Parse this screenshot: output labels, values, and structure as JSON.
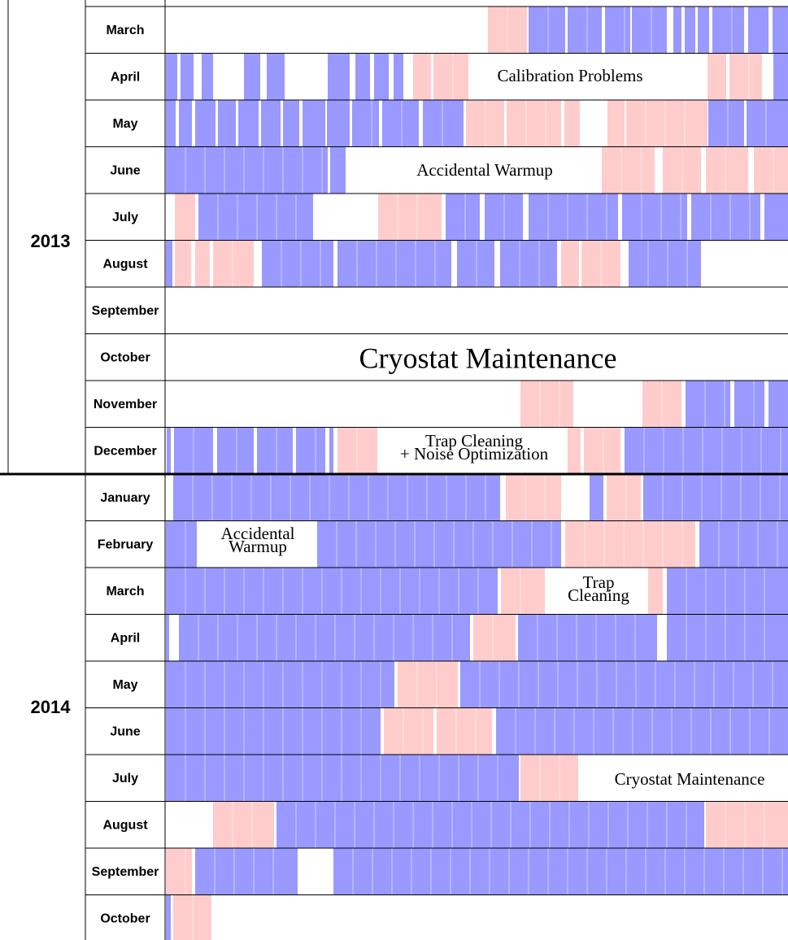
{
  "years": [
    {
      "label": "2013",
      "months": [
        "March",
        "April",
        "May",
        "June",
        "July",
        "August",
        "September",
        "October",
        "November",
        "December"
      ]
    },
    {
      "label": "2014",
      "months": [
        "January",
        "February",
        "March",
        "April",
        "May",
        "June",
        "July",
        "August",
        "September",
        "October"
      ]
    }
  ],
  "annotations": [
    {
      "lines": [
        "Calibration Problems"
      ]
    },
    {
      "lines": [
        "Accidental Warmup"
      ]
    },
    {
      "lines": [
        "Cryostat Maintenance"
      ]
    },
    {
      "lines": [
        "Trap Cleaning",
        "+ Noise Optimization"
      ]
    },
    {
      "lines": [
        "Accidental",
        "Warmup"
      ]
    },
    {
      "lines": [
        "Trap",
        "Cleaning"
      ]
    },
    {
      "lines": [
        "Cryostat Maintenance"
      ]
    }
  ]
}
